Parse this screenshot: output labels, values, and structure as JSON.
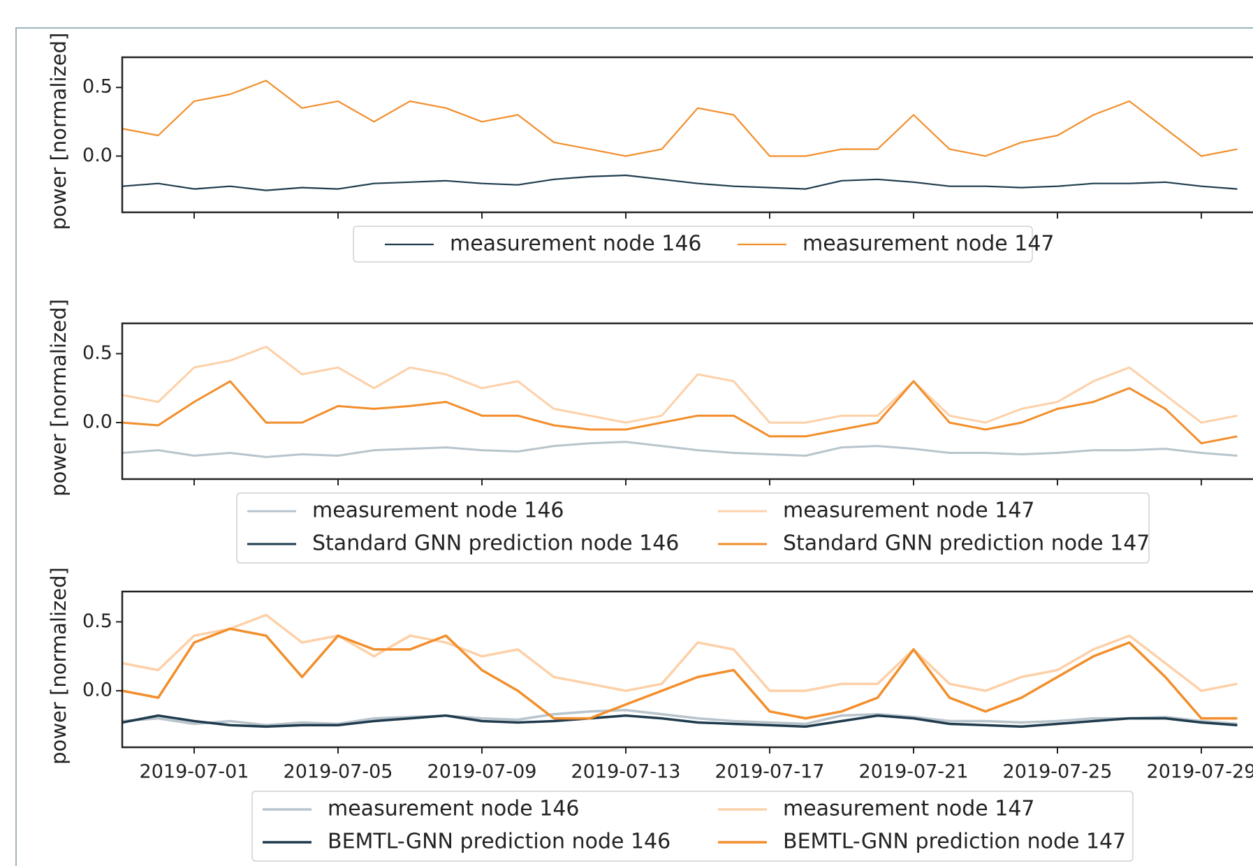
{
  "chart_data": [
    {
      "type": "line",
      "ylabel": "power [normalized]",
      "x": [
        "2019-06-29",
        "2019-06-30",
        "2019-07-01",
        "2019-07-02",
        "2019-07-03",
        "2019-07-04",
        "2019-07-05",
        "2019-07-06",
        "2019-07-07",
        "2019-07-08",
        "2019-07-09",
        "2019-07-10",
        "2019-07-11",
        "2019-07-12",
        "2019-07-13",
        "2019-07-14",
        "2019-07-15",
        "2019-07-16",
        "2019-07-17",
        "2019-07-18",
        "2019-07-19",
        "2019-07-20",
        "2019-07-21",
        "2019-07-22",
        "2019-07-23",
        "2019-07-24",
        "2019-07-25",
        "2019-07-26",
        "2019-07-27",
        "2019-07-28",
        "2019-07-29",
        "2019-07-30"
      ],
      "xlim": [
        "2019-06-29",
        "2019-07-31"
      ],
      "ylim": [
        -0.41,
        0.72
      ],
      "yticks": [
        {
          "value": 0,
          "label": "0.0"
        },
        {
          "value": 0.5,
          "label": "0.5"
        }
      ],
      "series": [
        {
          "name": "measurement node 146",
          "color": "#1f3b4d",
          "values": [
            -0.22,
            -0.2,
            -0.24,
            -0.22,
            -0.25,
            -0.23,
            -0.24,
            -0.2,
            -0.19,
            -0.18,
            -0.2,
            -0.21,
            -0.17,
            -0.15,
            -0.14,
            -0.17,
            -0.2,
            -0.22,
            -0.23,
            -0.24,
            -0.18,
            -0.17,
            -0.19,
            -0.22,
            -0.22,
            -0.23,
            -0.22,
            -0.2,
            -0.2,
            -0.19,
            -0.22,
            -0.24
          ]
        },
        {
          "name": "measurement node 147",
          "color": "#f28e2b",
          "values": [
            0.2,
            0.15,
            0.4,
            0.45,
            0.55,
            0.35,
            0.4,
            0.25,
            0.4,
            0.35,
            0.25,
            0.3,
            0.1,
            0.05,
            0.0,
            0.05,
            0.35,
            0.3,
            0.0,
            0.0,
            0.05,
            0.05,
            0.3,
            0.05,
            0.0,
            0.1,
            0.15,
            0.3,
            0.4,
            0.2,
            0.0,
            0.05
          ]
        }
      ]
    },
    {
      "type": "line",
      "ylabel": "power [normalized]",
      "x": [
        "2019-06-29",
        "2019-06-30",
        "2019-07-01",
        "2019-07-02",
        "2019-07-03",
        "2019-07-04",
        "2019-07-05",
        "2019-07-06",
        "2019-07-07",
        "2019-07-08",
        "2019-07-09",
        "2019-07-10",
        "2019-07-11",
        "2019-07-12",
        "2019-07-13",
        "2019-07-14",
        "2019-07-15",
        "2019-07-16",
        "2019-07-17",
        "2019-07-18",
        "2019-07-19",
        "2019-07-20",
        "2019-07-21",
        "2019-07-22",
        "2019-07-23",
        "2019-07-24",
        "2019-07-25",
        "2019-07-26",
        "2019-07-27",
        "2019-07-28",
        "2019-07-29",
        "2019-07-30"
      ],
      "xlim": [
        "2019-06-29",
        "2019-07-31"
      ],
      "ylim": [
        -0.41,
        0.72
      ],
      "yticks": [
        {
          "value": 0,
          "label": "0.0"
        },
        {
          "value": 0.5,
          "label": "0.5"
        }
      ],
      "series": [
        {
          "name": "measurement node 146",
          "color": "#b8c4cc",
          "values": [
            -0.22,
            -0.2,
            -0.24,
            -0.22,
            -0.25,
            -0.23,
            -0.24,
            -0.2,
            -0.19,
            -0.18,
            -0.2,
            -0.21,
            -0.17,
            -0.15,
            -0.14,
            -0.17,
            -0.2,
            -0.22,
            -0.23,
            -0.24,
            -0.18,
            -0.17,
            -0.19,
            -0.22,
            -0.22,
            -0.23,
            -0.22,
            -0.2,
            -0.2,
            -0.19,
            -0.22,
            -0.24
          ]
        },
        {
          "name": "Standard GNN prediction node 146",
          "color": "#1f3b4d",
          "values": [
            null,
            null,
            null,
            null,
            null,
            null,
            null,
            null,
            null,
            null,
            null,
            null,
            null,
            null,
            null,
            null,
            null,
            null,
            null,
            null,
            null,
            null,
            null,
            null,
            null,
            null,
            null,
            null,
            null,
            null,
            null,
            null
          ]
        },
        {
          "name": "measurement node 147",
          "color": "#fdd0a8",
          "values": [
            0.2,
            0.15,
            0.4,
            0.45,
            0.55,
            0.35,
            0.4,
            0.25,
            0.4,
            0.35,
            0.25,
            0.3,
            0.1,
            0.05,
            0.0,
            0.05,
            0.35,
            0.3,
            0.0,
            0.0,
            0.05,
            0.05,
            0.3,
            0.05,
            0.0,
            0.1,
            0.15,
            0.3,
            0.4,
            0.2,
            0.0,
            0.05
          ]
        },
        {
          "name": "Standard GNN prediction node 147",
          "color": "#f28e2b",
          "values": [
            0.0,
            -0.02,
            0.15,
            0.3,
            0.0,
            0.0,
            0.12,
            0.1,
            0.12,
            0.15,
            0.05,
            0.05,
            -0.02,
            -0.05,
            -0.05,
            0.0,
            0.05,
            0.05,
            -0.1,
            -0.1,
            -0.05,
            0.0,
            0.3,
            0.0,
            -0.05,
            0.0,
            0.1,
            0.15,
            0.25,
            0.1,
            -0.15,
            -0.1
          ]
        }
      ]
    },
    {
      "type": "line",
      "ylabel": "power [normalized]",
      "x": [
        "2019-06-29",
        "2019-06-30",
        "2019-07-01",
        "2019-07-02",
        "2019-07-03",
        "2019-07-04",
        "2019-07-05",
        "2019-07-06",
        "2019-07-07",
        "2019-07-08",
        "2019-07-09",
        "2019-07-10",
        "2019-07-11",
        "2019-07-12",
        "2019-07-13",
        "2019-07-14",
        "2019-07-15",
        "2019-07-16",
        "2019-07-17",
        "2019-07-18",
        "2019-07-19",
        "2019-07-20",
        "2019-07-21",
        "2019-07-22",
        "2019-07-23",
        "2019-07-24",
        "2019-07-25",
        "2019-07-26",
        "2019-07-27",
        "2019-07-28",
        "2019-07-29",
        "2019-07-30"
      ],
      "xlim": [
        "2019-06-29",
        "2019-07-31"
      ],
      "xticks": [
        "2019-07-01",
        "2019-07-05",
        "2019-07-09",
        "2019-07-13",
        "2019-07-17",
        "2019-07-21",
        "2019-07-25",
        "2019-07-29"
      ],
      "ylim": [
        -0.41,
        0.72
      ],
      "yticks": [
        {
          "value": 0,
          "label": "0.0"
        },
        {
          "value": 0.5,
          "label": "0.5"
        }
      ],
      "series": [
        {
          "name": "measurement node 146",
          "color": "#b8c4cc",
          "values": [
            -0.22,
            -0.2,
            -0.24,
            -0.22,
            -0.25,
            -0.23,
            -0.24,
            -0.2,
            -0.19,
            -0.18,
            -0.2,
            -0.21,
            -0.17,
            -0.15,
            -0.14,
            -0.17,
            -0.2,
            -0.22,
            -0.23,
            -0.24,
            -0.18,
            -0.17,
            -0.19,
            -0.22,
            -0.22,
            -0.23,
            -0.22,
            -0.2,
            -0.2,
            -0.19,
            -0.22,
            -0.24
          ]
        },
        {
          "name": "BEMTL-GNN prediction node 146",
          "color": "#1f3b4d",
          "values": [
            -0.23,
            -0.18,
            -0.22,
            -0.25,
            -0.26,
            -0.25,
            -0.25,
            -0.22,
            -0.2,
            -0.18,
            -0.22,
            -0.23,
            -0.22,
            -0.2,
            -0.18,
            -0.2,
            -0.23,
            -0.24,
            -0.25,
            -0.26,
            -0.22,
            -0.18,
            -0.2,
            -0.24,
            -0.25,
            -0.26,
            -0.24,
            -0.22,
            -0.2,
            -0.2,
            -0.23,
            -0.25
          ]
        },
        {
          "name": "measurement node 147",
          "color": "#fdd0a8",
          "values": [
            0.2,
            0.15,
            0.4,
            0.45,
            0.55,
            0.35,
            0.4,
            0.25,
            0.4,
            0.35,
            0.25,
            0.3,
            0.1,
            0.05,
            0.0,
            0.05,
            0.35,
            0.3,
            0.0,
            0.0,
            0.05,
            0.05,
            0.3,
            0.05,
            0.0,
            0.1,
            0.15,
            0.3,
            0.4,
            0.2,
            0.0,
            0.05
          ]
        },
        {
          "name": "BEMTL-GNN prediction node 147",
          "color": "#f28e2b",
          "values": [
            0.0,
            -0.05,
            0.35,
            0.45,
            0.4,
            0.1,
            0.4,
            0.3,
            0.3,
            0.4,
            0.15,
            0.0,
            -0.2,
            -0.2,
            -0.1,
            0.0,
            0.1,
            0.15,
            -0.15,
            -0.2,
            -0.15,
            -0.05,
            0.3,
            -0.05,
            -0.15,
            -0.05,
            0.1,
            0.25,
            0.35,
            0.1,
            -0.2,
            -0.2
          ]
        }
      ]
    }
  ]
}
